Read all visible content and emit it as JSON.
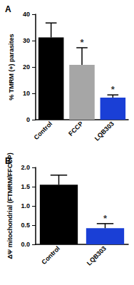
{
  "chart_data": [
    {
      "type": "bar",
      "title": "A",
      "categories": [
        "Control",
        "FCCP",
        "LQB303"
      ],
      "values": [
        31.2,
        20.8,
        8.4
      ],
      "errors": [
        5.5,
        6.5,
        1.0
      ],
      "colors": [
        "#000000",
        "#a6a6a6",
        "#1a3fd6"
      ],
      "y_label": "% TMRM (+) parasites",
      "ylim": [
        0,
        40
      ],
      "yticks": [
        0,
        10,
        20,
        30,
        40
      ],
      "annotations": [
        {
          "category": "FCCP",
          "text": "*"
        },
        {
          "category": "LQB303",
          "text": "*"
        }
      ],
      "grid": false
    },
    {
      "type": "bar",
      "title": "B",
      "categories": [
        "Control",
        "LQB303"
      ],
      "values": [
        1.55,
        0.42
      ],
      "errors": [
        0.25,
        0.12
      ],
      "colors": [
        "#000000",
        "#1a3fd6"
      ],
      "y_label": "ΔΨ mitochondrial (FTMRM/FFCCP)",
      "ylim": [
        0,
        2
      ],
      "yticks": [
        {
          "value": 0,
          "label": "0.0"
        },
        {
          "value": 0.5,
          "label": "0.5"
        },
        {
          "value": 1,
          "label": "1.0"
        },
        {
          "value": 1.5,
          "label": "1.5"
        },
        {
          "value": 2,
          "label": "2.0"
        }
      ],
      "annotations": [
        {
          "category": "LQB303",
          "text": "*"
        }
      ],
      "grid": false
    }
  ]
}
